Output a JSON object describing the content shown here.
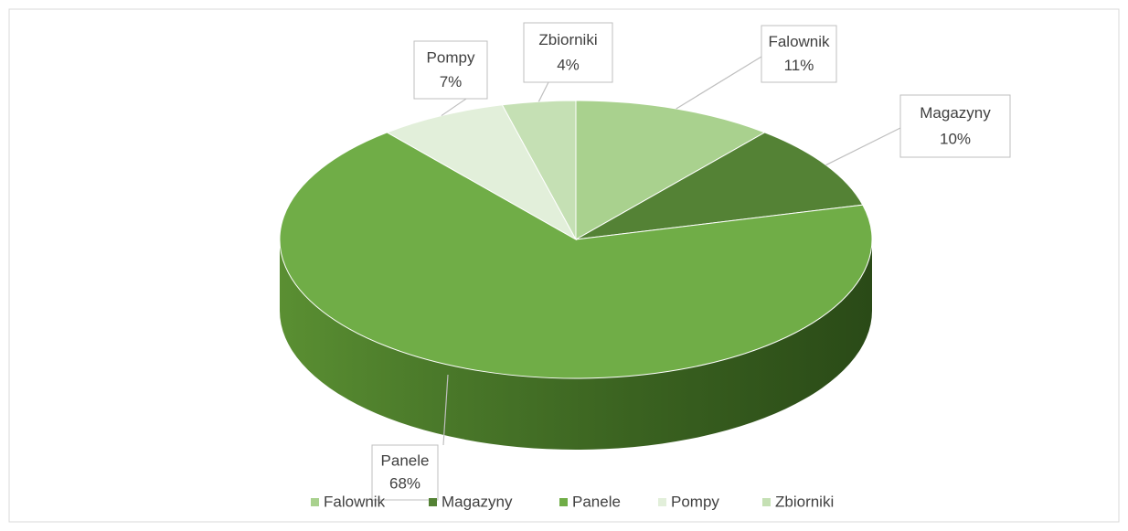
{
  "chart_data": {
    "type": "pie3d",
    "categories": [
      "Falownik",
      "Magazyny",
      "Panele",
      "Pompy",
      "Zbiorniki"
    ],
    "values": [
      11,
      10,
      68,
      7,
      4
    ],
    "value_labels": [
      "11%",
      "10%",
      "68%",
      "7%",
      "4%"
    ],
    "colors": [
      "#a9d18e",
      "#548235",
      "#70ad47",
      "#e2efda",
      "#c5e0b4"
    ],
    "legend": "bottom"
  }
}
